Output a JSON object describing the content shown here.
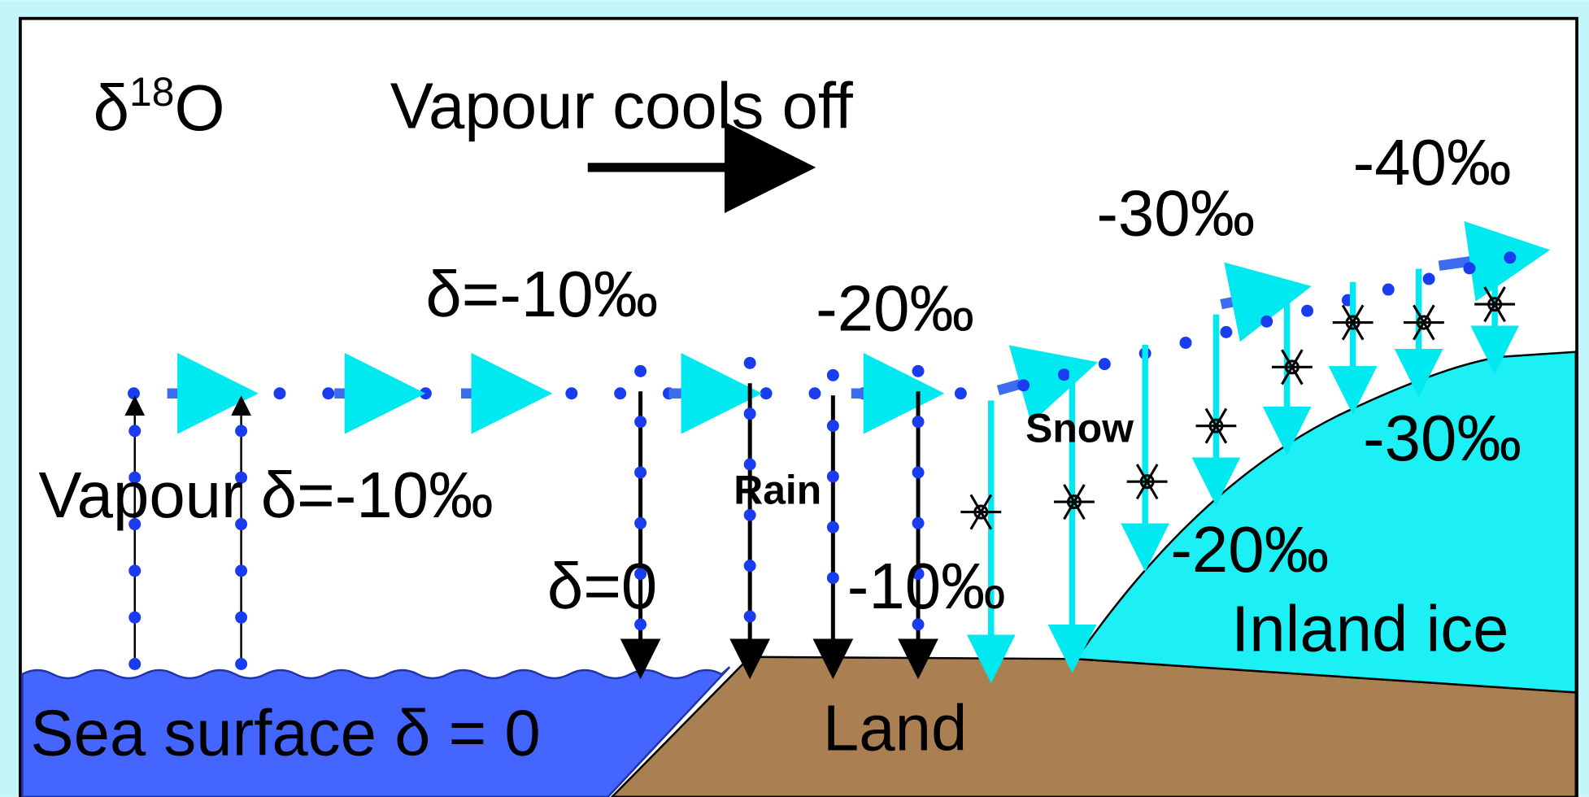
{
  "title": {
    "delta": "δ",
    "superscript": "18",
    "element": "O"
  },
  "heading": "Vapour cools off",
  "vapour_values": [
    "δ=-10‰",
    "-20‰",
    "-30‰",
    "-40‰"
  ],
  "vapour_label": "Vapour δ=-10‰",
  "precipitation": {
    "rain": "Rain",
    "snow": "Snow",
    "rain_start": "δ=0",
    "rain_end": "-10‰"
  },
  "ice": {
    "values": [
      "-20‰",
      "-30‰"
    ],
    "label": "Inland ice"
  },
  "sea": "Sea surface δ = 0",
  "land": "Land"
}
